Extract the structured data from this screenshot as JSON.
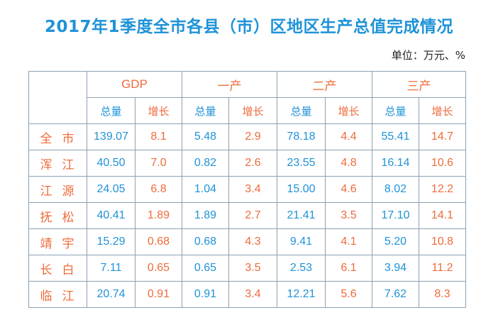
{
  "title": "2017年1季度全市各县（市）区地区生产总值完成情况",
  "unit": "单位：万元、%",
  "groups": [
    "GDP",
    "一产",
    "二产",
    "三产"
  ],
  "sub_headers": {
    "total": "总量",
    "growth": "增长"
  },
  "rows": [
    {
      "region": "全市",
      "values": [
        "139.07",
        "8.1",
        "5.48",
        "2.9",
        "78.18",
        "4.4",
        "55.41",
        "14.7"
      ]
    },
    {
      "region": "浑江",
      "values": [
        "40.50",
        "7.0",
        "0.82",
        "2.6",
        "23.55",
        "4.8",
        "16.14",
        "10.6"
      ]
    },
    {
      "region": "江源",
      "values": [
        "24.05",
        "6.8",
        "1.04",
        "3.4",
        "15.00",
        "4.6",
        "8.02",
        "12.2"
      ]
    },
    {
      "region": "抚松",
      "values": [
        "40.41",
        "1.89",
        "1.89",
        "2.7",
        "21.41",
        "3.5",
        "17.10",
        "14.1"
      ]
    },
    {
      "region": "靖宇",
      "values": [
        "15.29",
        "0.68",
        "0.68",
        "4.3",
        "9.41",
        "4.1",
        "5.20",
        "10.8"
      ]
    },
    {
      "region": "长白",
      "values": [
        "7.11",
        "0.65",
        "0.65",
        "3.5",
        "2.53",
        "6.1",
        "3.94",
        "11.2"
      ]
    },
    {
      "region": "临江",
      "values": [
        "20.74",
        "0.91",
        "0.91",
        "3.4",
        "12.21",
        "5.6",
        "7.62",
        "8.3"
      ]
    }
  ],
  "colors": {
    "title": "#1f93d8",
    "accent": "#ef6b3c",
    "value": "#1f93d8",
    "border": "#8aa2b4"
  }
}
